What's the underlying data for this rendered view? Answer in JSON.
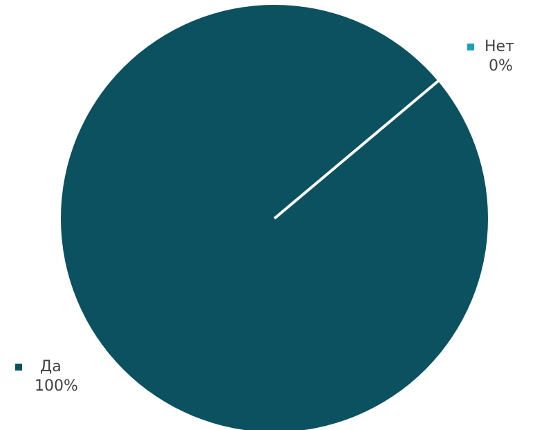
{
  "chart_data": {
    "type": "pie",
    "title": "",
    "slices": [
      {
        "label": "Да",
        "value": 100,
        "percent_label": "100%",
        "color": "#0B5160"
      },
      {
        "label": "Нет",
        "value": 0,
        "percent_label": "0%",
        "color": "#17A2B8"
      }
    ],
    "slice_border_color": "#FFFFFF",
    "legend": "none",
    "data_labels": "category-and-percent"
  }
}
